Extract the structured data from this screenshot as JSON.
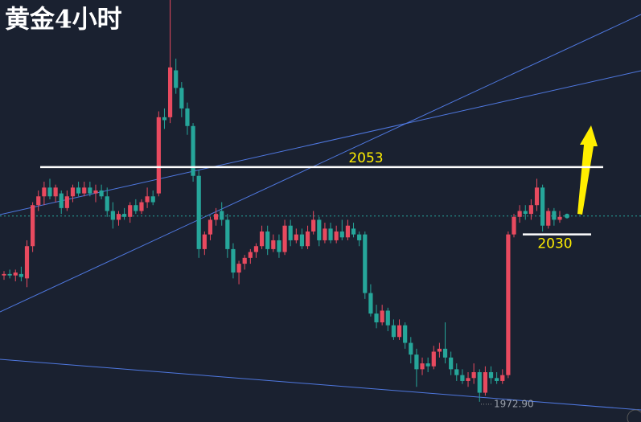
{
  "chart_data": {
    "type": "candlestick",
    "title": "黄金4小时",
    "ylim": [
      1966,
      2110
    ],
    "up_color": "#e84a5f",
    "down_color": "#26a69a",
    "series": {
      "open": [
        2016,
        2016.5,
        2016,
        2016.5,
        2015,
        2026,
        2040,
        2043,
        2046,
        2043,
        2044,
        2039,
        2043,
        2046,
        2044,
        2046,
        2044,
        2045,
        2043,
        2038,
        2035,
        2037,
        2036,
        2040,
        2038,
        2041,
        2043,
        2044,
        2070,
        2070,
        2086,
        2080,
        2073,
        2067,
        2050,
        2025,
        2030,
        2035,
        2038,
        2035,
        2025,
        2017,
        2020,
        2022,
        2024,
        2026,
        2031,
        2025,
        2028,
        2024,
        2033,
        2028,
        2030,
        2026,
        2031,
        2035,
        2028,
        2032,
        2028,
        2031,
        2029,
        2032,
        2030,
        2030,
        2010,
        2003,
        2000,
        2004,
        1999,
        1995,
        1999,
        1993,
        1989,
        1984,
        1986,
        1985,
        1990,
        1991,
        1988,
        1984,
        1982,
        1980,
        1981,
        1983,
        1976,
        1983,
        1981,
        1980,
        1982,
        2030,
        2036,
        2038,
        2037,
        2040,
        2046,
        2033,
        2038,
        2035
      ],
      "high": [
        2017.5,
        2018,
        2018,
        2019,
        2028,
        2041,
        2045,
        2048,
        2049,
        2047,
        2045,
        2045,
        2047,
        2048,
        2048,
        2048,
        2047,
        2047,
        2046,
        2041,
        2038,
        2039,
        2041,
        2042,
        2042,
        2046,
        2045,
        2072,
        2073,
        2110,
        2090,
        2082,
        2075,
        2068,
        2052,
        2031,
        2036,
        2039,
        2041,
        2037,
        2027,
        2021,
        2023,
        2025,
        2027,
        2033,
        2033,
        2030,
        2030,
        2035,
        2035,
        2032,
        2032,
        2033,
        2038,
        2036,
        2034,
        2034,
        2033,
        2035,
        2035,
        2034,
        2031,
        2031,
        2013,
        2006,
        2006,
        2005,
        2001,
        2001,
        2000,
        1995,
        1991,
        1988,
        1988,
        1992,
        1993,
        2000,
        1990,
        1986,
        1984,
        1983,
        1986,
        1984,
        1985,
        1985,
        1983,
        1984,
        2031,
        2037,
        2040,
        2040,
        2042,
        2049,
        2047,
        2039,
        2039,
        2038
      ],
      "low": [
        2014.5,
        2015,
        2014,
        2014,
        2012,
        2024,
        2038,
        2040,
        2042,
        2041,
        2037,
        2038,
        2041,
        2043,
        2043,
        2043,
        2041,
        2042,
        2036,
        2032,
        2033,
        2035,
        2034,
        2037,
        2037,
        2039,
        2040,
        2043,
        2066,
        2068,
        2078,
        2070,
        2064,
        2048,
        2022,
        2023,
        2028,
        2033,
        2033,
        2022,
        2015,
        2013,
        2018,
        2020,
        2022,
        2025,
        2023,
        2024,
        2022,
        2023,
        2026,
        2027,
        2025,
        2025,
        2030,
        2026,
        2027,
        2027,
        2027,
        2028,
        2028,
        2029,
        2026,
        2008,
        2002,
        1998,
        1999,
        1997,
        1994,
        1994,
        1991,
        1986,
        1978,
        1982,
        1983,
        1984,
        1988,
        1986,
        1982,
        1980,
        1979,
        1978,
        1979,
        1972.9,
        1975,
        1979,
        1979,
        1979,
        1981,
        2029,
        2034,
        2035,
        2035,
        2038,
        2031,
        2032,
        2033,
        2034
      ],
      "close": [
        2016.5,
        2016,
        2017,
        2015.5,
        2026,
        2040,
        2043,
        2046,
        2043,
        2046,
        2039,
        2043,
        2046,
        2044,
        2046,
        2044,
        2045,
        2043,
        2038,
        2035,
        2037,
        2036,
        2040,
        2038,
        2041,
        2043,
        2041,
        2070,
        2069,
        2087,
        2080,
        2073,
        2067,
        2050,
        2025,
        2030,
        2035,
        2037,
        2035,
        2025,
        2017,
        2020,
        2022,
        2024,
        2026,
        2031,
        2025,
        2028,
        2024,
        2033,
        2028,
        2030,
        2026,
        2031,
        2035,
        2028,
        2032,
        2028,
        2031,
        2029,
        2033,
        2030,
        2028,
        2010,
        2003,
        2000,
        2004,
        1999,
        1995,
        1999,
        1993,
        1989,
        1984,
        1986,
        1985,
        1990,
        1991,
        1988,
        1984,
        1982,
        1980,
        1981,
        1983,
        1976,
        1983,
        1981,
        1980,
        1982,
        2030,
        2036,
        2038,
        2037,
        2040,
        2046,
        2033,
        2038,
        2035,
        2036
      ]
    },
    "levels": [
      2053,
      2030
    ],
    "current_price": 2036.3,
    "low_label": {
      "value": 1972.9,
      "label": "1972.90"
    }
  }
}
